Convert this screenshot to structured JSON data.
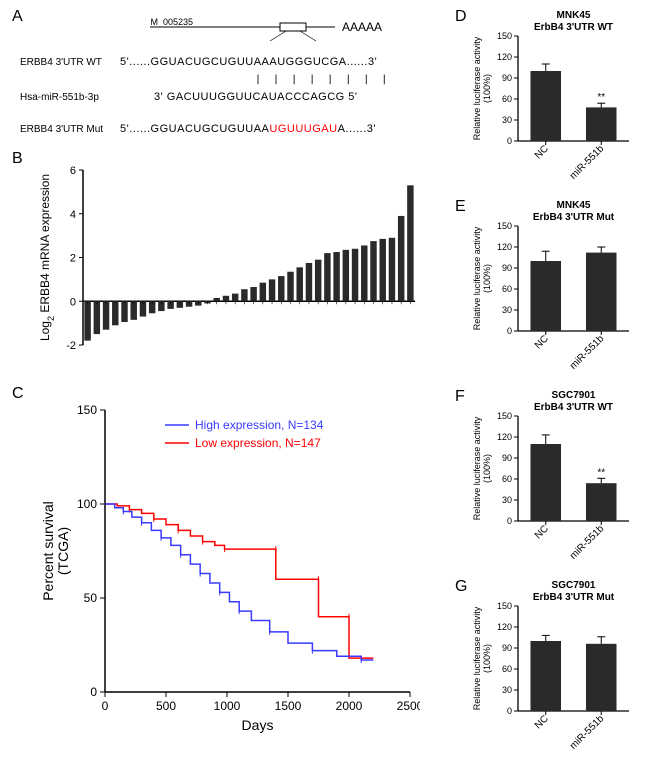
{
  "panelA": {
    "label": "A",
    "schematic_accession": "NM_005235",
    "schematic_polyA": "AAAAA",
    "rows": [
      {
        "label": "ERBB4  3'UTR WT",
        "seq_prefix": "5'......GGUACUGCUGUUAA",
        "seq_match": "AUGGGUCGA",
        "seq_suffix": "......3'"
      },
      {
        "label": "Hsa-miR-551b-3p",
        "seq_full": "3' GACUUUGGUUCAUACCCAGCG 5'"
      },
      {
        "label": "ERBB4 3'UTR Mut",
        "seq_prefix": "5'......GGUACUGCUGUUAA",
        "seq_mut": "UGUUUGAU",
        "seq_suffix": "A......3'"
      }
    ],
    "pairing_marks": "| | | | | | | |"
  },
  "panelB": {
    "label": "B",
    "ylabel": "Log₂ ERBB4 mRNA expression",
    "ylim": [
      -2,
      6
    ],
    "ytick_step": 2,
    "bar_color": "#2a2a2a",
    "background": "#ffffff",
    "values": [
      -1.8,
      -1.5,
      -1.3,
      -1.1,
      -0.95,
      -0.85,
      -0.7,
      -0.55,
      -0.45,
      -0.35,
      -0.3,
      -0.25,
      -0.2,
      -0.1,
      0.15,
      0.25,
      0.35,
      0.55,
      0.65,
      0.85,
      1.0,
      1.15,
      1.35,
      1.55,
      1.75,
      1.9,
      2.2,
      2.25,
      2.35,
      2.4,
      2.55,
      2.75,
      2.85,
      2.9,
      3.9,
      5.3
    ],
    "bar_width": 0.7
  },
  "panelC": {
    "label": "C",
    "ylabel": "Percent survival\n(TCGA)",
    "xlabel": "Days",
    "xlim": [
      0,
      2500
    ],
    "ylim": [
      0,
      150
    ],
    "xtick_step": 500,
    "ytick_step": 50,
    "legend": [
      {
        "label": "High expression, N=134",
        "color": "#3a3aff"
      },
      {
        "label": "Low expression, N=147",
        "color": "#ff0000"
      }
    ],
    "high_curve": {
      "color": "#3a3aff",
      "points": [
        [
          0,
          100
        ],
        [
          80,
          98
        ],
        [
          150,
          96
        ],
        [
          220,
          93
        ],
        [
          300,
          90
        ],
        [
          380,
          86
        ],
        [
          460,
          82
        ],
        [
          540,
          78
        ],
        [
          620,
          73
        ],
        [
          700,
          68
        ],
        [
          780,
          63
        ],
        [
          860,
          58
        ],
        [
          940,
          53
        ],
        [
          1020,
          48
        ],
        [
          1100,
          43
        ],
        [
          1200,
          38
        ],
        [
          1350,
          32
        ],
        [
          1500,
          26
        ],
        [
          1700,
          22
        ],
        [
          1900,
          19
        ],
        [
          2100,
          17
        ],
        [
          2200,
          17
        ]
      ]
    },
    "low_curve": {
      "color": "#ff0000",
      "points": [
        [
          0,
          100
        ],
        [
          100,
          99
        ],
        [
          200,
          97
        ],
        [
          300,
          95
        ],
        [
          400,
          92
        ],
        [
          500,
          89
        ],
        [
          600,
          86
        ],
        [
          700,
          83
        ],
        [
          800,
          80
        ],
        [
          900,
          78
        ],
        [
          980,
          76
        ],
        [
          980,
          76
        ],
        [
          1400,
          76
        ],
        [
          1400,
          60
        ],
        [
          1750,
          60
        ],
        [
          1750,
          40
        ],
        [
          2000,
          40
        ],
        [
          2000,
          18
        ],
        [
          2200,
          18
        ]
      ]
    }
  },
  "rightCharts": {
    "ylabel": "Relative luciferase activity\n(100%)",
    "ylim": [
      0,
      150
    ],
    "ytick_step": 30,
    "bar_color": "#2a2a2a",
    "categories": [
      "NC",
      "miR-551b"
    ],
    "bar_width": 0.55,
    "charts": [
      {
        "id": "D",
        "title_line1": "MNK45",
        "title_line2": "ErbB4 3'UTR WT",
        "values": [
          100,
          48
        ],
        "errors": [
          10,
          6
        ],
        "sig": "**",
        "sig_on": 1
      },
      {
        "id": "E",
        "title_line1": "MNK45",
        "title_line2": "ErbB4 3'UTR Mut",
        "values": [
          100,
          112
        ],
        "errors": [
          14,
          8
        ],
        "sig": null
      },
      {
        "id": "F",
        "title_line1": "SGC7901",
        "title_line2": "ErbB4 3'UTR WT",
        "values": [
          110,
          54
        ],
        "errors": [
          13,
          7
        ],
        "sig": "**",
        "sig_on": 1
      },
      {
        "id": "G",
        "title_line1": "SGC7901",
        "title_line2": "ErbB4 3'UTR Mut",
        "values": [
          100,
          96
        ],
        "errors": [
          8,
          10
        ],
        "sig": null
      }
    ]
  }
}
